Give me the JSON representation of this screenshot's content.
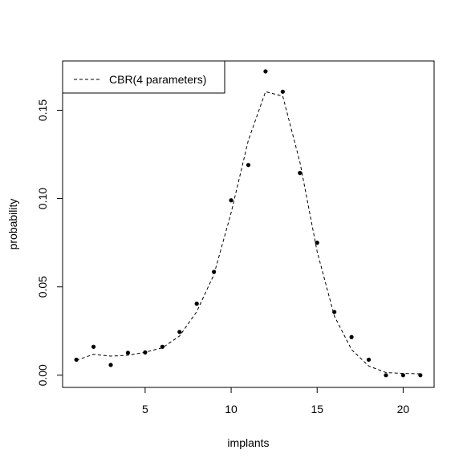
{
  "chart_data": {
    "type": "line",
    "title": "",
    "xlabel": "implants",
    "ylabel": "probability",
    "xlim": [
      0.2,
      21.8
    ],
    "ylim": [
      -0.0069,
      0.1779
    ],
    "xticks": [
      5,
      10,
      15,
      20
    ],
    "xtick_labels": [
      "5",
      "10",
      "15",
      "20"
    ],
    "yticks": [
      0,
      0.05,
      0.1,
      0.15
    ],
    "ytick_labels": [
      "0.00",
      "0.05",
      "0.10",
      "0.15"
    ],
    "grid": false,
    "legend": {
      "position": "top-left",
      "entries": [
        {
          "label": "CBR(4 parameters)",
          "line_style": "dashed"
        }
      ]
    },
    "series": [
      {
        "mark": "points",
        "x": [
          1,
          2,
          3,
          4,
          5,
          6,
          7,
          8,
          9,
          10,
          11,
          12,
          13,
          14,
          15,
          16,
          17,
          18,
          19,
          20,
          21
        ],
        "y": [
          0.0088,
          0.0161,
          0.0058,
          0.0127,
          0.0129,
          0.0161,
          0.0245,
          0.0405,
          0.0585,
          0.099,
          0.119,
          0.172,
          0.1605,
          0.1145,
          0.075,
          0.0358,
          0.0216,
          0.0088,
          0.0,
          0.0,
          0.0
        ],
        "color": "#000000"
      },
      {
        "name": "CBR(4 parameters)",
        "mark": "dashed-line",
        "x": [
          1,
          2,
          3,
          4,
          5,
          6,
          7,
          8,
          9,
          10,
          11,
          12,
          13,
          14,
          15,
          16,
          17,
          18,
          19,
          20,
          21
        ],
        "y": [
          0.0085,
          0.0118,
          0.0108,
          0.0113,
          0.013,
          0.0155,
          0.0222,
          0.036,
          0.057,
          0.092,
          0.133,
          0.1605,
          0.158,
          0.1205,
          0.07,
          0.0335,
          0.0145,
          0.0052,
          0.0015,
          0.001,
          0.0008
        ],
        "color": "#000000"
      }
    ]
  }
}
